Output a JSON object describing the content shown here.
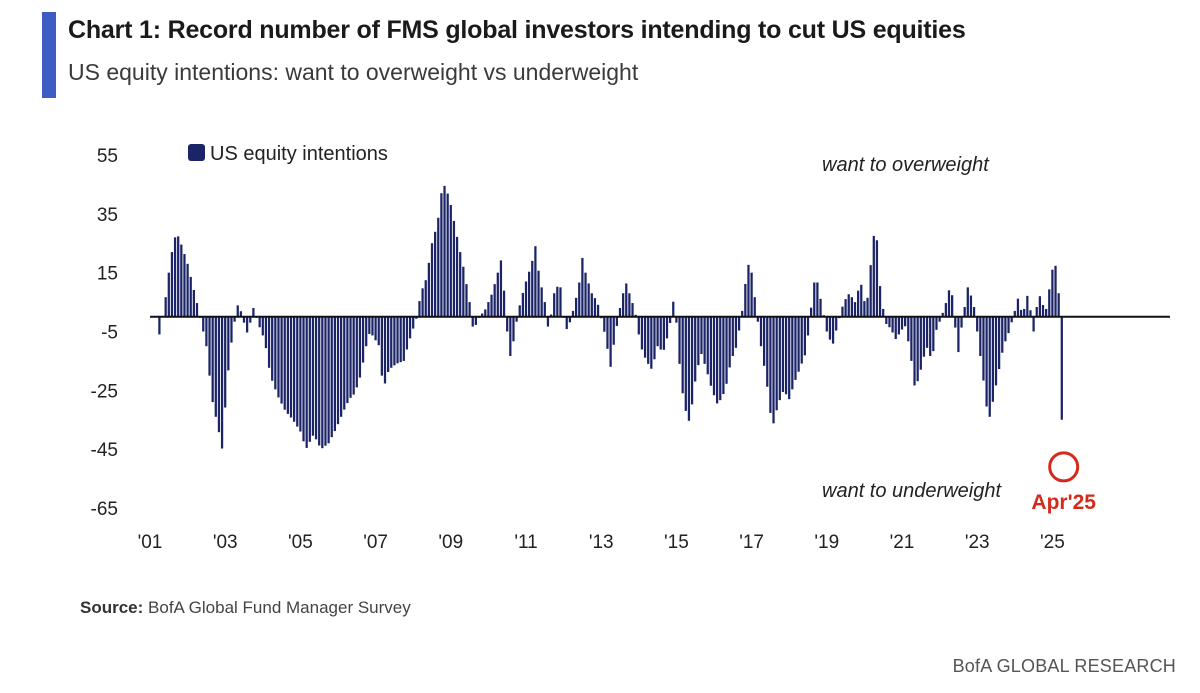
{
  "header": {
    "title": "Chart 1: Record number of FMS global investors intending to cut US equities",
    "subtitle": "US equity intentions: want to overweight vs underweight"
  },
  "source": {
    "label": "Source:",
    "text": "BofA Global Fund Manager Survey"
  },
  "footer": {
    "text": "BofA GLOBAL RESEARCH"
  },
  "colors": {
    "accent": "#3d5cc4",
    "bars": "#1b2466",
    "highlight": "#d42a1c"
  },
  "chart_data": {
    "type": "bar",
    "title": "",
    "xlabel": "",
    "ylabel": "",
    "ylim": [
      -65,
      55
    ],
    "xlim": [
      2001.0,
      2026.0
    ],
    "y_ticks": [
      55,
      35,
      15,
      -5,
      -25,
      -45,
      -65
    ],
    "x_ticks": [
      {
        "label": "'01",
        "value": 2001.0
      },
      {
        "label": "'03",
        "value": 2003.0
      },
      {
        "label": "'05",
        "value": 2005.0
      },
      {
        "label": "'07",
        "value": 2007.0
      },
      {
        "label": "'09",
        "value": 2009.0
      },
      {
        "label": "'11",
        "value": 2011.0
      },
      {
        "label": "'13",
        "value": 2013.0
      },
      {
        "label": "'15",
        "value": 2015.0
      },
      {
        "label": "'17",
        "value": 2017.0
      },
      {
        "label": "'19",
        "value": 2019.0
      },
      {
        "label": "'21",
        "value": 2021.0
      },
      {
        "label": "'23",
        "value": 2023.0
      },
      {
        "label": "'25",
        "value": 2025.0
      }
    ],
    "legend": {
      "label": "US equity intentions",
      "position": "top-left"
    },
    "annotations": {
      "overweight": "want to overweight",
      "underweight": "want to underweight",
      "highlight_label": "Apr'25",
      "highlight_value": -50
    },
    "series": [
      {
        "name": "US equity intentions",
        "anchors": [
          [
            2001.25,
            -6
          ],
          [
            2001.4,
            5
          ],
          [
            2001.55,
            20
          ],
          [
            2001.7,
            29
          ],
          [
            2001.85,
            24
          ],
          [
            2002.0,
            18
          ],
          [
            2002.15,
            10
          ],
          [
            2002.3,
            2
          ],
          [
            2002.5,
            -10
          ],
          [
            2002.65,
            -28
          ],
          [
            2002.8,
            -37
          ],
          [
            2002.92,
            -45
          ],
          [
            2003.05,
            -22
          ],
          [
            2003.2,
            -5
          ],
          [
            2003.35,
            5
          ],
          [
            2003.5,
            -2
          ],
          [
            2003.6,
            -6
          ],
          [
            2003.75,
            3
          ],
          [
            2003.9,
            -3
          ],
          [
            2004.05,
            -8
          ],
          [
            2004.2,
            -20
          ],
          [
            2004.4,
            -27
          ],
          [
            2004.6,
            -32
          ],
          [
            2004.8,
            -35
          ],
          [
            2005.0,
            -39
          ],
          [
            2005.15,
            -45
          ],
          [
            2005.35,
            -40
          ],
          [
            2005.55,
            -45
          ],
          [
            2005.75,
            -43
          ],
          [
            2005.95,
            -38
          ],
          [
            2006.15,
            -32
          ],
          [
            2006.3,
            -28
          ],
          [
            2006.45,
            -26
          ],
          [
            2006.6,
            -20
          ],
          [
            2006.75,
            -10
          ],
          [
            2006.85,
            -5
          ],
          [
            2007.0,
            -8
          ],
          [
            2007.1,
            -10
          ],
          [
            2007.2,
            -25
          ],
          [
            2007.35,
            -18
          ],
          [
            2007.55,
            -16
          ],
          [
            2007.75,
            -15
          ],
          [
            2007.9,
            -8
          ],
          [
            2008.1,
            0
          ],
          [
            2008.2,
            8
          ],
          [
            2008.35,
            13
          ],
          [
            2008.5,
            25
          ],
          [
            2008.65,
            32
          ],
          [
            2008.75,
            42
          ],
          [
            2008.85,
            45
          ],
          [
            2009.0,
            38
          ],
          [
            2009.2,
            25
          ],
          [
            2009.35,
            16
          ],
          [
            2009.5,
            5
          ],
          [
            2009.6,
            -5
          ],
          [
            2009.75,
            0
          ],
          [
            2009.9,
            2
          ],
          [
            2010.1,
            8
          ],
          [
            2010.25,
            15
          ],
          [
            2010.35,
            20
          ],
          [
            2010.5,
            -5
          ],
          [
            2010.6,
            -15
          ],
          [
            2010.7,
            -5
          ],
          [
            2010.85,
            5
          ],
          [
            2011.0,
            12
          ],
          [
            2011.15,
            18
          ],
          [
            2011.25,
            24
          ],
          [
            2011.35,
            14
          ],
          [
            2011.5,
            5
          ],
          [
            2011.6,
            -5
          ],
          [
            2011.75,
            8
          ],
          [
            2011.9,
            12
          ],
          [
            2012.0,
            0
          ],
          [
            2012.1,
            -5
          ],
          [
            2012.25,
            2
          ],
          [
            2012.4,
            10
          ],
          [
            2012.5,
            20
          ],
          [
            2012.6,
            14
          ],
          [
            2012.75,
            8
          ],
          [
            2012.9,
            5
          ],
          [
            2013.1,
            -6
          ],
          [
            2013.25,
            -17
          ],
          [
            2013.35,
            -8
          ],
          [
            2013.5,
            3
          ],
          [
            2013.65,
            12
          ],
          [
            2013.75,
            8
          ],
          [
            2013.9,
            2
          ],
          [
            2014.05,
            -10
          ],
          [
            2014.2,
            -15
          ],
          [
            2014.35,
            -18
          ],
          [
            2014.5,
            -10
          ],
          [
            2014.65,
            -12
          ],
          [
            2014.8,
            -5
          ],
          [
            2014.95,
            8
          ],
          [
            2015.05,
            -12
          ],
          [
            2015.2,
            -30
          ],
          [
            2015.35,
            -36
          ],
          [
            2015.5,
            -22
          ],
          [
            2015.65,
            -12
          ],
          [
            2015.8,
            -18
          ],
          [
            2015.95,
            -25
          ],
          [
            2016.1,
            -30
          ],
          [
            2016.3,
            -25
          ],
          [
            2016.45,
            -15
          ],
          [
            2016.6,
            -10
          ],
          [
            2016.75,
            2
          ],
          [
            2016.85,
            13
          ],
          [
            2016.95,
            20
          ],
          [
            2017.1,
            5
          ],
          [
            2017.25,
            -10
          ],
          [
            2017.4,
            -22
          ],
          [
            2017.55,
            -38
          ],
          [
            2017.7,
            -30
          ],
          [
            2017.85,
            -25
          ],
          [
            2018.0,
            -28
          ],
          [
            2018.15,
            -22
          ],
          [
            2018.3,
            -17
          ],
          [
            2018.45,
            -12
          ],
          [
            2018.6,
            5
          ],
          [
            2018.7,
            15
          ],
          [
            2018.85,
            5
          ],
          [
            2019.0,
            -5
          ],
          [
            2019.15,
            -10
          ],
          [
            2019.3,
            -2
          ],
          [
            2019.45,
            5
          ],
          [
            2019.6,
            8
          ],
          [
            2019.75,
            5
          ],
          [
            2019.9,
            12
          ],
          [
            2020.05,
            2
          ],
          [
            2020.2,
            22
          ],
          [
            2020.3,
            33
          ],
          [
            2020.4,
            12
          ],
          [
            2020.55,
            -2
          ],
          [
            2020.7,
            -4
          ],
          [
            2020.85,
            -8
          ],
          [
            2020.95,
            -5
          ],
          [
            2021.1,
            -3
          ],
          [
            2021.25,
            -15
          ],
          [
            2021.35,
            -25
          ],
          [
            2021.5,
            -18
          ],
          [
            2021.65,
            -10
          ],
          [
            2021.8,
            -15
          ],
          [
            2021.9,
            -5
          ],
          [
            2022.05,
            0
          ],
          [
            2022.2,
            6
          ],
          [
            2022.3,
            12
          ],
          [
            2022.4,
            -2
          ],
          [
            2022.5,
            -12
          ],
          [
            2022.6,
            -2
          ],
          [
            2022.75,
            10
          ],
          [
            2022.9,
            5
          ],
          [
            2023.05,
            -10
          ],
          [
            2023.2,
            -25
          ],
          [
            2023.3,
            -36
          ],
          [
            2023.4,
            -30
          ],
          [
            2023.55,
            -20
          ],
          [
            2023.7,
            -10
          ],
          [
            2023.85,
            -5
          ],
          [
            2024.0,
            2
          ],
          [
            2024.1,
            7
          ],
          [
            2024.2,
            0
          ],
          [
            2024.35,
            8
          ],
          [
            2024.5,
            -5
          ],
          [
            2024.6,
            5
          ],
          [
            2024.7,
            8
          ],
          [
            2024.8,
            0
          ],
          [
            2024.95,
            12
          ],
          [
            2025.05,
            20
          ],
          [
            2025.15,
            12
          ],
          [
            2025.2,
            0
          ],
          [
            2025.25,
            -35
          ],
          [
            2025.3,
            -50
          ]
        ]
      }
    ]
  }
}
